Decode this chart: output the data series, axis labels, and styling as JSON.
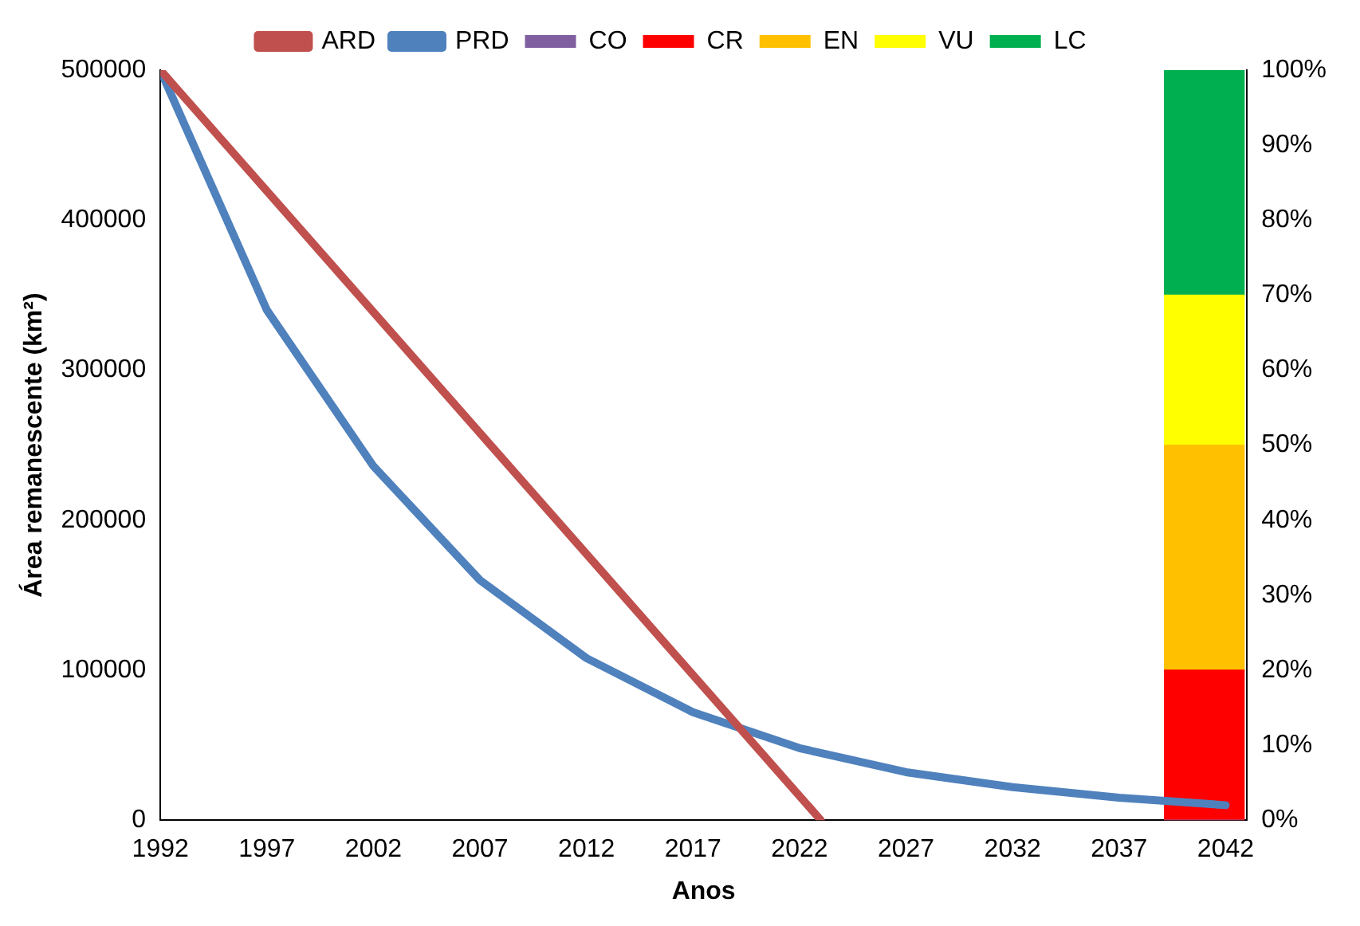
{
  "chart_data": {
    "type": "line",
    "xlabel": "Anos",
    "ylabel": "Área remanescente (km²)",
    "x": [
      1992,
      1997,
      2002,
      2007,
      2012,
      2017,
      2022,
      2027,
      2032,
      2037,
      2042
    ],
    "series": [
      {
        "name": "CO",
        "type": "bar",
        "axis": "y2",
        "color": "#7f5fa0",
        "x": [
          2041
        ],
        "values": [
          0
        ]
      },
      {
        "name": "CR",
        "type": "bar",
        "axis": "y2",
        "color": "#ff0000",
        "x": [
          2041
        ],
        "values": [
          20
        ]
      },
      {
        "name": "EN",
        "type": "bar",
        "axis": "y2",
        "color": "#ffc000",
        "x": [
          2041
        ],
        "values": [
          30
        ]
      },
      {
        "name": "VU",
        "type": "bar",
        "axis": "y2",
        "color": "#ffff00",
        "x": [
          2041
        ],
        "values": [
          20
        ]
      },
      {
        "name": "LC",
        "type": "bar",
        "axis": "y2",
        "color": "#00b050",
        "x": [
          2041
        ],
        "values": [
          30
        ]
      },
      {
        "name": "ARD",
        "color": "#c0504d",
        "x": [
          1992,
          2023
        ],
        "values": [
          500000,
          0
        ]
      },
      {
        "name": "PRD",
        "color": "#4f81bd",
        "values": [
          500000,
          340000,
          236000,
          160000,
          108000,
          72000,
          48000,
          32000,
          22000,
          15000,
          10000
        ]
      }
    ],
    "stacked": true,
    "xlim": [
      1992,
      2043
    ],
    "xticks": [
      1992,
      1997,
      2002,
      2007,
      2012,
      2017,
      2022,
      2027,
      2032,
      2037,
      2042
    ],
    "ylim": [
      0,
      500000
    ],
    "yticks": [
      0,
      100000,
      200000,
      300000,
      400000,
      500000
    ],
    "y2lim": [
      0,
      100
    ],
    "y2ticks": [
      {
        "value": 0,
        "label": "0%"
      },
      {
        "value": 10,
        "label": "10%"
      },
      {
        "value": 20,
        "label": "20%"
      },
      {
        "value": 30,
        "label": "30%"
      },
      {
        "value": 40,
        "label": "40%"
      },
      {
        "value": 50,
        "label": "50%"
      },
      {
        "value": 60,
        "label": "60%"
      },
      {
        "value": 70,
        "label": "70%"
      },
      {
        "value": 80,
        "label": "80%"
      },
      {
        "value": 90,
        "label": "90%"
      },
      {
        "value": 100,
        "label": "100%"
      }
    ],
    "grid": false,
    "legend": "top",
    "marker": "none",
    "line_style": "solid"
  }
}
